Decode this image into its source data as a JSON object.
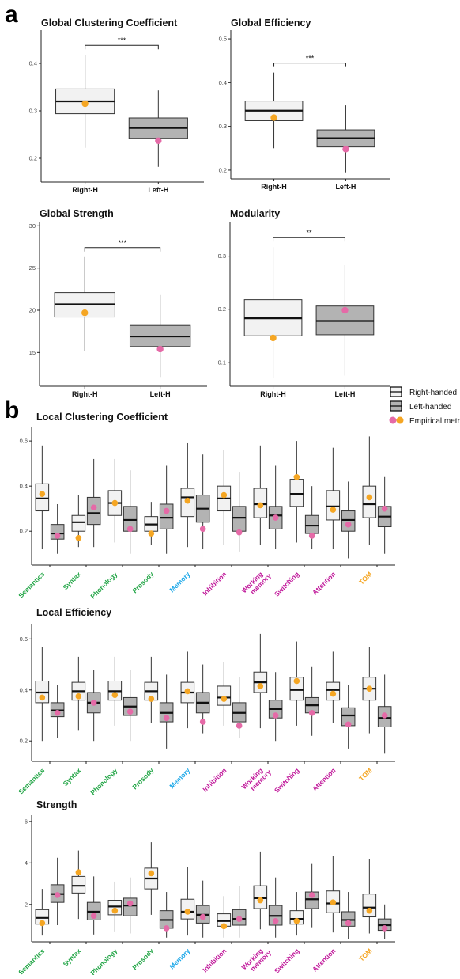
{
  "panels": {
    "a": "a",
    "b": "b"
  },
  "colors": {
    "right_fill": "#f2f2f2",
    "left_fill": "#b3b3b3",
    "right_point": "#f5a623",
    "left_point": "#e56aa7",
    "green": "#22a546",
    "blue": "#1aa7e8",
    "magenta": "#c0189a",
    "orange": "#f5a623"
  },
  "legend": {
    "items": [
      "Right-handed",
      "Left-handed",
      "Empirical metrics"
    ]
  },
  "chart_data": [
    {
      "type": "box",
      "title": "Global Clustering Coefficient",
      "categories": [
        "Right-H",
        "Left-H"
      ],
      "ylim": [
        0.15,
        0.47
      ],
      "yticks": [
        0.2,
        0.3,
        0.4
      ],
      "significance": "***",
      "boxes": [
        {
          "min": 0.222,
          "q1": 0.294,
          "median": 0.32,
          "q3": 0.346,
          "max": 0.418,
          "point": 0.315
        },
        {
          "min": 0.182,
          "q1": 0.242,
          "median": 0.264,
          "q3": 0.285,
          "max": 0.343,
          "point": 0.237
        }
      ]
    },
    {
      "type": "box",
      "title": "Global Efficiency",
      "categories": [
        "Right-H",
        "Left-H"
      ],
      "ylim": [
        0.18,
        0.52
      ],
      "yticks": [
        0.2,
        0.3,
        0.4,
        0.5
      ],
      "significance": "***",
      "boxes": [
        {
          "min": 0.25,
          "q1": 0.313,
          "median": 0.336,
          "q3": 0.358,
          "max": 0.423,
          "point": 0.32
        },
        {
          "min": 0.195,
          "q1": 0.253,
          "median": 0.273,
          "q3": 0.292,
          "max": 0.348,
          "point": 0.248
        }
      ]
    },
    {
      "type": "box",
      "title": "Global Strength",
      "categories": [
        "Right-H",
        "Left-H"
      ],
      "ylim": [
        11,
        30.5
      ],
      "yticks": [
        15,
        20,
        25,
        30
      ],
      "significance": "***",
      "boxes": [
        {
          "min": 15.2,
          "q1": 19.2,
          "median": 20.7,
          "q3": 22.1,
          "max": 26.3,
          "point": 19.7
        },
        {
          "min": 12.1,
          "q1": 15.7,
          "median": 16.9,
          "q3": 18.2,
          "max": 21.8,
          "point": 15.4
        }
      ]
    },
    {
      "type": "box",
      "title": "Modularity",
      "categories": [
        "Right-H",
        "Left-H"
      ],
      "ylim": [
        0.055,
        0.365
      ],
      "yticks": [
        0.1,
        0.2,
        0.3
      ],
      "significance": "**",
      "boxes": [
        {
          "min": 0.07,
          "q1": 0.15,
          "median": 0.183,
          "q3": 0.218,
          "max": 0.317,
          "point": 0.146
        },
        {
          "min": 0.075,
          "q1": 0.152,
          "median": 0.178,
          "q3": 0.206,
          "max": 0.283,
          "point": 0.198
        }
      ]
    },
    {
      "type": "box",
      "title": "Local Clustering Coefficient",
      "ylim": [
        0.05,
        0.66
      ],
      "yticks": [
        0.2,
        0.4,
        0.6
      ],
      "categories": [
        {
          "label": "Semantics",
          "color": "#22a546",
          "right": {
            "min": 0.12,
            "q1": 0.29,
            "median": 0.345,
            "q3": 0.41,
            "max": 0.58,
            "point": 0.365
          },
          "left": {
            "min": 0.1,
            "q1": 0.165,
            "median": 0.19,
            "q3": 0.23,
            "max": 0.32,
            "point": 0.18
          }
        },
        {
          "label": "Syntax",
          "color": "#22a546",
          "right": {
            "min": 0.13,
            "q1": 0.2,
            "median": 0.24,
            "q3": 0.27,
            "max": 0.36,
            "point": 0.17
          },
          "left": {
            "min": 0.13,
            "q1": 0.23,
            "median": 0.28,
            "q3": 0.35,
            "max": 0.52,
            "point": 0.305
          }
        },
        {
          "label": "Phonology",
          "color": "#22a546",
          "right": {
            "min": 0.15,
            "q1": 0.27,
            "median": 0.325,
            "q3": 0.38,
            "max": 0.52,
            "point": 0.325
          },
          "left": {
            "min": 0.1,
            "q1": 0.2,
            "median": 0.25,
            "q3": 0.31,
            "max": 0.47,
            "point": 0.21
          }
        },
        {
          "label": "Prosody",
          "color": "#22a546",
          "right": {
            "min": 0.14,
            "q1": 0.2,
            "median": 0.23,
            "q3": 0.265,
            "max": 0.33,
            "point": 0.19
          },
          "left": {
            "min": 0.1,
            "q1": 0.21,
            "median": 0.26,
            "q3": 0.32,
            "max": 0.49,
            "point": 0.29
          }
        },
        {
          "label": "Memory",
          "color": "#1aa7e8",
          "right": {
            "min": 0.13,
            "q1": 0.265,
            "median": 0.35,
            "q3": 0.39,
            "max": 0.59,
            "point": 0.335
          },
          "left": {
            "min": 0.12,
            "q1": 0.24,
            "median": 0.3,
            "q3": 0.36,
            "max": 0.54,
            "point": 0.21
          }
        },
        {
          "label": "Inhibition",
          "color": "#c0189a",
          "right": {
            "min": 0.14,
            "q1": 0.29,
            "median": 0.345,
            "q3": 0.4,
            "max": 0.56,
            "point": 0.36
          },
          "left": {
            "min": 0.11,
            "q1": 0.2,
            "median": 0.26,
            "q3": 0.31,
            "max": 0.46,
            "point": 0.195
          }
        },
        {
          "label": "Working\nmemory",
          "color": "#c0189a",
          "right": {
            "min": 0.14,
            "q1": 0.26,
            "median": 0.32,
            "q3": 0.39,
            "max": 0.58,
            "point": 0.315
          },
          "left": {
            "min": 0.12,
            "q1": 0.21,
            "median": 0.27,
            "q3": 0.31,
            "max": 0.49,
            "point": 0.26
          }
        },
        {
          "label": "Switching",
          "color": "#c0189a",
          "right": {
            "min": 0.15,
            "q1": 0.31,
            "median": 0.365,
            "q3": 0.43,
            "max": 0.6,
            "point": 0.44
          },
          "left": {
            "min": 0.12,
            "q1": 0.19,
            "median": 0.225,
            "q3": 0.27,
            "max": 0.4,
            "point": 0.18
          }
        },
        {
          "label": "Attention",
          "color": "#c0189a",
          "right": {
            "min": 0.12,
            "q1": 0.25,
            "median": 0.31,
            "q3": 0.38,
            "max": 0.57,
            "point": 0.295
          },
          "left": {
            "min": 0.08,
            "q1": 0.2,
            "median": 0.25,
            "q3": 0.29,
            "max": 0.42,
            "point": 0.23
          }
        },
        {
          "label": "TOM",
          "color": "#f5a623",
          "right": {
            "min": 0.14,
            "q1": 0.26,
            "median": 0.32,
            "q3": 0.4,
            "max": 0.62,
            "point": 0.35
          },
          "left": {
            "min": 0.1,
            "q1": 0.22,
            "median": 0.265,
            "q3": 0.31,
            "max": 0.44,
            "point": 0.3
          }
        }
      ]
    },
    {
      "type": "box",
      "title": "Local Efficiency",
      "ylim": [
        0.12,
        0.66
      ],
      "yticks": [
        0.2,
        0.4,
        0.6
      ],
      "categories": [
        {
          "label": "Semantics",
          "color": "#22a546",
          "right": {
            "min": 0.2,
            "q1": 0.35,
            "median": 0.39,
            "q3": 0.435,
            "max": 0.57,
            "point": 0.37
          },
          "left": {
            "min": 0.21,
            "q1": 0.295,
            "median": 0.32,
            "q3": 0.35,
            "max": 0.42,
            "point": 0.31
          }
        },
        {
          "label": "Syntax",
          "color": "#22a546",
          "right": {
            "min": 0.24,
            "q1": 0.36,
            "median": 0.395,
            "q3": 0.43,
            "max": 0.53,
            "point": 0.375
          },
          "left": {
            "min": 0.2,
            "q1": 0.31,
            "median": 0.35,
            "q3": 0.39,
            "max": 0.48,
            "point": 0.35
          }
        },
        {
          "label": "Phonology",
          "color": "#22a546",
          "right": {
            "min": 0.26,
            "q1": 0.36,
            "median": 0.395,
            "q3": 0.435,
            "max": 0.53,
            "point": 0.38
          },
          "left": {
            "min": 0.2,
            "q1": 0.3,
            "median": 0.335,
            "q3": 0.37,
            "max": 0.48,
            "point": 0.315
          }
        },
        {
          "label": "Prosody",
          "color": "#22a546",
          "right": {
            "min": 0.27,
            "q1": 0.36,
            "median": 0.395,
            "q3": 0.43,
            "max": 0.53,
            "point": 0.365
          },
          "left": {
            "min": 0.17,
            "q1": 0.275,
            "median": 0.31,
            "q3": 0.35,
            "max": 0.46,
            "point": 0.29
          }
        },
        {
          "label": "Memory",
          "color": "#1aa7e8",
          "right": {
            "min": 0.25,
            "q1": 0.35,
            "median": 0.39,
            "q3": 0.43,
            "max": 0.55,
            "point": 0.395
          },
          "left": {
            "min": 0.23,
            "q1": 0.31,
            "median": 0.35,
            "q3": 0.39,
            "max": 0.5,
            "point": 0.275
          }
        },
        {
          "label": "Inhibition",
          "color": "#c0189a",
          "right": {
            "min": 0.26,
            "q1": 0.34,
            "median": 0.37,
            "q3": 0.415,
            "max": 0.51,
            "point": 0.365
          },
          "left": {
            "min": 0.21,
            "q1": 0.275,
            "median": 0.31,
            "q3": 0.35,
            "max": 0.45,
            "point": 0.26
          }
        },
        {
          "label": "Working\nmemory",
          "color": "#c0189a",
          "right": {
            "min": 0.25,
            "q1": 0.39,
            "median": 0.43,
            "q3": 0.47,
            "max": 0.62,
            "point": 0.415
          },
          "left": {
            "min": 0.2,
            "q1": 0.29,
            "median": 0.325,
            "q3": 0.36,
            "max": 0.47,
            "point": 0.3
          }
        },
        {
          "label": "Switching",
          "color": "#c0189a",
          "right": {
            "min": 0.26,
            "q1": 0.36,
            "median": 0.4,
            "q3": 0.45,
            "max": 0.59,
            "point": 0.435
          },
          "left": {
            "min": 0.22,
            "q1": 0.31,
            "median": 0.34,
            "q3": 0.37,
            "max": 0.49,
            "point": 0.31
          }
        },
        {
          "label": "Attention",
          "color": "#c0189a",
          "right": {
            "min": 0.27,
            "q1": 0.36,
            "median": 0.4,
            "q3": 0.43,
            "max": 0.55,
            "point": 0.385
          },
          "left": {
            "min": 0.17,
            "q1": 0.26,
            "median": 0.3,
            "q3": 0.33,
            "max": 0.42,
            "point": 0.265
          }
        },
        {
          "label": "TOM",
          "color": "#f5a623",
          "right": {
            "min": 0.23,
            "q1": 0.36,
            "median": 0.405,
            "q3": 0.45,
            "max": 0.57,
            "point": 0.405
          },
          "left": {
            "min": 0.15,
            "q1": 0.255,
            "median": 0.29,
            "q3": 0.335,
            "max": 0.46,
            "point": 0.3
          }
        }
      ]
    },
    {
      "type": "box",
      "title": "Strength",
      "ylim": [
        0.2,
        6.3
      ],
      "yticks": [
        2,
        4,
        6
      ],
      "categories": [
        {
          "label": "Semantics",
          "color": "#22a546",
          "right": {
            "min": 0.5,
            "q1": 1.05,
            "median": 1.35,
            "q3": 1.75,
            "max": 2.75,
            "point": 1.1
          },
          "left": {
            "min": 1.0,
            "q1": 2.1,
            "median": 2.5,
            "q3": 2.95,
            "max": 4.25,
            "point": 2.45
          }
        },
        {
          "label": "Syntax",
          "color": "#22a546",
          "right": {
            "min": 1.3,
            "q1": 2.55,
            "median": 2.9,
            "q3": 3.35,
            "max": 4.6,
            "point": 3.55
          },
          "left": {
            "min": 0.55,
            "q1": 1.25,
            "median": 1.65,
            "q3": 2.1,
            "max": 3.35,
            "point": 1.45
          }
        },
        {
          "label": "Phonology",
          "color": "#22a546",
          "right": {
            "min": 0.7,
            "q1": 1.5,
            "median": 1.9,
            "q3": 2.2,
            "max": 3.1,
            "point": 1.7
          },
          "left": {
            "min": 0.6,
            "q1": 1.45,
            "median": 1.95,
            "q3": 2.3,
            "max": 3.3,
            "point": 2.05
          }
        },
        {
          "label": "Prosody",
          "color": "#22a546",
          "right": {
            "min": 1.5,
            "q1": 2.75,
            "median": 3.25,
            "q3": 3.75,
            "max": 5.0,
            "point": 3.5
          },
          "left": {
            "min": 0.4,
            "q1": 0.85,
            "median": 1.25,
            "q3": 1.7,
            "max": 2.6,
            "point": 0.85
          }
        },
        {
          "label": "Memory",
          "color": "#1aa7e8",
          "right": {
            "min": 0.5,
            "q1": 1.3,
            "median": 1.65,
            "q3": 2.25,
            "max": 3.8,
            "point": 1.65
          },
          "left": {
            "min": 0.4,
            "q1": 1.1,
            "median": 1.5,
            "q3": 1.95,
            "max": 3.15,
            "point": 1.4
          }
        },
        {
          "label": "Inhibition",
          "color": "#c0189a",
          "right": {
            "min": 0.4,
            "q1": 0.95,
            "median": 1.2,
            "q3": 1.55,
            "max": 2.4,
            "point": 0.95
          },
          "left": {
            "min": 0.4,
            "q1": 1.0,
            "median": 1.3,
            "q3": 1.75,
            "max": 2.9,
            "point": 1.3
          }
        },
        {
          "label": "Working\nmemory",
          "color": "#c0189a",
          "right": {
            "min": 0.8,
            "q1": 1.8,
            "median": 2.3,
            "q3": 2.9,
            "max": 4.55,
            "point": 2.2
          },
          "left": {
            "min": 0.4,
            "q1": 1.0,
            "median": 1.45,
            "q3": 1.95,
            "max": 3.3,
            "point": 1.2
          }
        },
        {
          "label": "Switching",
          "color": "#c0189a",
          "right": {
            "min": 0.5,
            "q1": 1.05,
            "median": 1.3,
            "q3": 1.7,
            "max": 2.6,
            "point": 1.2
          },
          "left": {
            "min": 0.9,
            "q1": 1.8,
            "median": 2.25,
            "q3": 2.6,
            "max": 3.95,
            "point": 2.45
          }
        },
        {
          "label": "Attention",
          "color": "#c0189a",
          "right": {
            "min": 0.65,
            "q1": 1.6,
            "median": 2.05,
            "q3": 2.65,
            "max": 4.35,
            "point": 2.1
          },
          "left": {
            "min": 0.35,
            "q1": 0.95,
            "median": 1.25,
            "q3": 1.65,
            "max": 2.6,
            "point": 1.1
          }
        },
        {
          "label": "TOM",
          "color": "#f5a623",
          "right": {
            "min": 0.6,
            "q1": 1.4,
            "median": 1.85,
            "q3": 2.5,
            "max": 4.2,
            "point": 1.7
          },
          "left": {
            "min": 0.35,
            "q1": 0.75,
            "median": 1.0,
            "q3": 1.3,
            "max": 2.0,
            "point": 0.85
          }
        }
      ]
    }
  ]
}
